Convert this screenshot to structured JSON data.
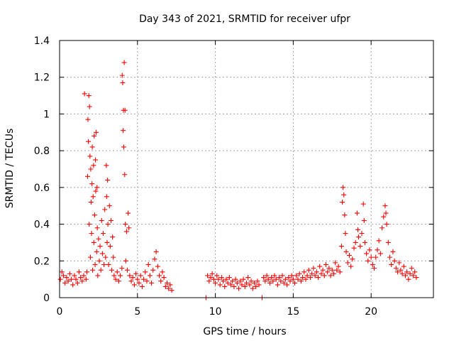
{
  "chart_data": {
    "type": "scatter",
    "title": "Day 343 of 2021, SRMTID for receiver ufpr",
    "xlabel": "GPS time / hours",
    "ylabel": "SRMTID / TECUs",
    "xlim": [
      0,
      24
    ],
    "ylim": [
      0,
      1.4
    ],
    "xticks": [
      0,
      5,
      10,
      15,
      20
    ],
    "yticks": [
      0,
      0.2,
      0.4,
      0.6,
      0.8,
      1,
      1.2,
      1.4
    ],
    "xtick_labels": [
      "0",
      "5",
      "10",
      "15",
      "20"
    ],
    "ytick_labels": [
      "0",
      "0.2",
      "0.4",
      "0.6",
      "0.8",
      "1",
      "1.2",
      "1.4"
    ],
    "grid": true,
    "marker": "plus",
    "color": "#ff0000",
    "series": [
      {
        "name": "ufpr",
        "points": [
          [
            0.05,
            0.1
          ],
          [
            0.15,
            0.14
          ],
          [
            0.25,
            0.12
          ],
          [
            0.35,
            0.08
          ],
          [
            0.45,
            0.11
          ],
          [
            0.55,
            0.09
          ],
          [
            0.65,
            0.13
          ],
          [
            0.75,
            0.1
          ],
          [
            0.85,
            0.07
          ],
          [
            0.95,
            0.12
          ],
          [
            1.05,
            0.1
          ],
          [
            1.15,
            0.08
          ],
          [
            1.25,
            0.14
          ],
          [
            1.35,
            0.11
          ],
          [
            1.45,
            0.09
          ],
          [
            1.55,
            0.12
          ],
          [
            1.6,
            1.11
          ],
          [
            1.7,
            0.1
          ],
          [
            1.75,
            0.14
          ],
          [
            1.8,
            0.66
          ],
          [
            1.82,
            0.97
          ],
          [
            1.85,
            0.85
          ],
          [
            1.88,
            1.1
          ],
          [
            1.9,
            0.4
          ],
          [
            1.92,
            1.04
          ],
          [
            1.95,
            0.77
          ],
          [
            1.98,
            0.22
          ],
          [
            2.0,
            0.7
          ],
          [
            2.02,
            0.52
          ],
          [
            2.05,
            0.35
          ],
          [
            2.08,
            0.62
          ],
          [
            2.1,
            0.82
          ],
          [
            2.12,
            0.15
          ],
          [
            2.15,
            0.55
          ],
          [
            2.18,
            0.72
          ],
          [
            2.2,
            0.3
          ],
          [
            2.22,
            0.88
          ],
          [
            2.25,
            0.45
          ],
          [
            2.28,
            0.18
          ],
          [
            2.3,
            0.75
          ],
          [
            2.32,
            0.58
          ],
          [
            2.35,
            0.9
          ],
          [
            2.38,
            0.25
          ],
          [
            2.4,
            0.6
          ],
          [
            2.42,
            0.38
          ],
          [
            2.45,
            0.12
          ],
          [
            2.5,
            0.32
          ],
          [
            2.55,
            0.2
          ],
          [
            2.6,
            0.28
          ],
          [
            2.65,
            0.15
          ],
          [
            2.7,
            0.42
          ],
          [
            2.75,
            0.24
          ],
          [
            2.8,
            0.35
          ],
          [
            2.85,
            0.18
          ],
          [
            2.9,
            0.48
          ],
          [
            2.95,
            0.22
          ],
          [
            3.0,
            0.72
          ],
          [
            3.02,
            0.55
          ],
          [
            3.05,
            0.3
          ],
          [
            3.08,
            0.64
          ],
          [
            3.1,
            0.4
          ],
          [
            3.15,
            0.18
          ],
          [
            3.2,
            0.5
          ],
          [
            3.25,
            0.28
          ],
          [
            3.3,
            0.42
          ],
          [
            3.35,
            0.15
          ],
          [
            3.4,
            0.33
          ],
          [
            3.45,
            0.22
          ],
          [
            3.5,
            0.12
          ],
          [
            3.6,
            0.1
          ],
          [
            3.7,
            0.14
          ],
          [
            3.8,
            0.09
          ],
          [
            3.9,
            0.12
          ],
          [
            4.0,
            0.16
          ],
          [
            4.02,
            1.21
          ],
          [
            4.05,
            1.17
          ],
          [
            4.08,
            0.91
          ],
          [
            4.1,
            1.02
          ],
          [
            4.12,
            0.82
          ],
          [
            4.15,
            1.28
          ],
          [
            4.18,
            0.67
          ],
          [
            4.2,
            1.02
          ],
          [
            4.22,
            0.4
          ],
          [
            4.25,
            0.2
          ],
          [
            4.3,
            0.36
          ],
          [
            4.35,
            0.15
          ],
          [
            4.4,
            0.46
          ],
          [
            4.45,
            0.38
          ],
          [
            4.5,
            0.12
          ],
          [
            4.6,
            0.09
          ],
          [
            4.7,
            0.11
          ],
          [
            4.8,
            0.07
          ],
          [
            4.9,
            0.13
          ],
          [
            5.0,
            0.1
          ],
          [
            5.1,
            0.08
          ],
          [
            5.2,
            0.12
          ],
          [
            5.3,
            0.06
          ],
          [
            5.4,
            0.1
          ],
          [
            5.5,
            0.14
          ],
          [
            5.6,
            0.09
          ],
          [
            5.7,
            0.18
          ],
          [
            5.8,
            0.12
          ],
          [
            5.9,
            0.08
          ],
          [
            6.0,
            0.15
          ],
          [
            6.1,
            0.21
          ],
          [
            6.2,
            0.25
          ],
          [
            6.3,
            0.17
          ],
          [
            6.4,
            0.12
          ],
          [
            6.5,
            0.09
          ],
          [
            6.6,
            0.14
          ],
          [
            6.7,
            0.11
          ],
          [
            6.8,
            0.06
          ],
          [
            6.9,
            0.08
          ],
          [
            7.0,
            0.05
          ],
          [
            7.1,
            0.07
          ],
          [
            7.2,
            0.04
          ],
          [
            9.4,
            0.0
          ],
          [
            9.5,
            0.12
          ],
          [
            9.6,
            0.09
          ],
          [
            9.7,
            0.11
          ],
          [
            9.8,
            0.13
          ],
          [
            9.9,
            0.1
          ],
          [
            10.0,
            0.08
          ],
          [
            10.1,
            0.12
          ],
          [
            10.2,
            0.1
          ],
          [
            10.3,
            0.07
          ],
          [
            10.4,
            0.11
          ],
          [
            10.5,
            0.09
          ],
          [
            10.6,
            0.06
          ],
          [
            10.7,
            0.1
          ],
          [
            10.8,
            0.08
          ],
          [
            10.9,
            0.11
          ],
          [
            11.0,
            0.07
          ],
          [
            11.1,
            0.09
          ],
          [
            11.2,
            0.06
          ],
          [
            11.3,
            0.1
          ],
          [
            11.4,
            0.08
          ],
          [
            11.5,
            0.05
          ],
          [
            11.6,
            0.09
          ],
          [
            11.7,
            0.07
          ],
          [
            11.8,
            0.1
          ],
          [
            11.9,
            0.06
          ],
          [
            12.0,
            0.08
          ],
          [
            12.1,
            0.11
          ],
          [
            12.2,
            0.07
          ],
          [
            12.3,
            0.09
          ],
          [
            12.4,
            0.05
          ],
          [
            12.5,
            0.08
          ],
          [
            12.6,
            0.06
          ],
          [
            12.7,
            0.09
          ],
          [
            12.8,
            0.07
          ],
          [
            13.0,
            0.0
          ],
          [
            13.1,
            0.11
          ],
          [
            13.2,
            0.09
          ],
          [
            13.3,
            0.12
          ],
          [
            13.4,
            0.1
          ],
          [
            13.5,
            0.08
          ],
          [
            13.6,
            0.11
          ],
          [
            13.7,
            0.09
          ],
          [
            13.8,
            0.12
          ],
          [
            13.9,
            0.1
          ],
          [
            14.0,
            0.07
          ],
          [
            14.1,
            0.11
          ],
          [
            14.2,
            0.09
          ],
          [
            14.3,
            0.12
          ],
          [
            14.4,
            0.08
          ],
          [
            14.5,
            0.1
          ],
          [
            14.6,
            0.07
          ],
          [
            14.7,
            0.11
          ],
          [
            14.8,
            0.09
          ],
          [
            14.9,
            0.12
          ],
          [
            15.0,
            0.1
          ],
          [
            15.1,
            0.08
          ],
          [
            15.2,
            0.12
          ],
          [
            15.3,
            0.1
          ],
          [
            15.4,
            0.13
          ],
          [
            15.5,
            0.09
          ],
          [
            15.6,
            0.11
          ],
          [
            15.7,
            0.14
          ],
          [
            15.8,
            0.1
          ],
          [
            15.9,
            0.12
          ],
          [
            16.0,
            0.15
          ],
          [
            16.1,
            0.11
          ],
          [
            16.2,
            0.13
          ],
          [
            16.3,
            0.16
          ],
          [
            16.4,
            0.12
          ],
          [
            16.5,
            0.14
          ],
          [
            16.6,
            0.11
          ],
          [
            16.7,
            0.17
          ],
          [
            16.8,
            0.13
          ],
          [
            16.9,
            0.15
          ],
          [
            17.0,
            0.12
          ],
          [
            17.1,
            0.18
          ],
          [
            17.2,
            0.14
          ],
          [
            17.3,
            0.16
          ],
          [
            17.4,
            0.12
          ],
          [
            17.5,
            0.15
          ],
          [
            17.6,
            0.13
          ],
          [
            17.7,
            0.19
          ],
          [
            17.8,
            0.15
          ],
          [
            17.9,
            0.17
          ],
          [
            18.0,
            0.14
          ],
          [
            18.1,
            0.28
          ],
          [
            18.15,
            0.52
          ],
          [
            18.2,
            0.6
          ],
          [
            18.25,
            0.56
          ],
          [
            18.3,
            0.45
          ],
          [
            18.35,
            0.35
          ],
          [
            18.4,
            0.25
          ],
          [
            18.5,
            0.19
          ],
          [
            18.6,
            0.23
          ],
          [
            18.7,
            0.17
          ],
          [
            18.8,
            0.21
          ],
          [
            18.9,
            0.27
          ],
          [
            19.0,
            0.3
          ],
          [
            19.1,
            0.46
          ],
          [
            19.15,
            0.37
          ],
          [
            19.2,
            0.33
          ],
          [
            19.3,
            0.28
          ],
          [
            19.4,
            0.35
          ],
          [
            19.5,
            0.51
          ],
          [
            19.55,
            0.42
          ],
          [
            19.6,
            0.3
          ],
          [
            19.7,
            0.24
          ],
          [
            19.8,
            0.2
          ],
          [
            19.9,
            0.26
          ],
          [
            20.0,
            0.22
          ],
          [
            20.1,
            0.18
          ],
          [
            20.2,
            0.16
          ],
          [
            20.3,
            0.22
          ],
          [
            20.4,
            0.26
          ],
          [
            20.5,
            0.31
          ],
          [
            20.6,
            0.24
          ],
          [
            20.7,
            0.38
          ],
          [
            20.8,
            0.44
          ],
          [
            20.9,
            0.5
          ],
          [
            20.95,
            0.46
          ],
          [
            21.0,
            0.4
          ],
          [
            21.1,
            0.3
          ],
          [
            21.2,
            0.22
          ],
          [
            21.3,
            0.18
          ],
          [
            21.4,
            0.25
          ],
          [
            21.5,
            0.2
          ],
          [
            21.6,
            0.16
          ],
          [
            21.7,
            0.14
          ],
          [
            21.8,
            0.19
          ],
          [
            21.9,
            0.15
          ],
          [
            22.0,
            0.13
          ],
          [
            22.1,
            0.17
          ],
          [
            22.2,
            0.12
          ],
          [
            22.3,
            0.14
          ],
          [
            22.4,
            0.1
          ],
          [
            22.5,
            0.13
          ],
          [
            22.6,
            0.16
          ],
          [
            22.7,
            0.12
          ],
          [
            22.8,
            0.14
          ],
          [
            22.9,
            0.11
          ]
        ]
      }
    ]
  }
}
